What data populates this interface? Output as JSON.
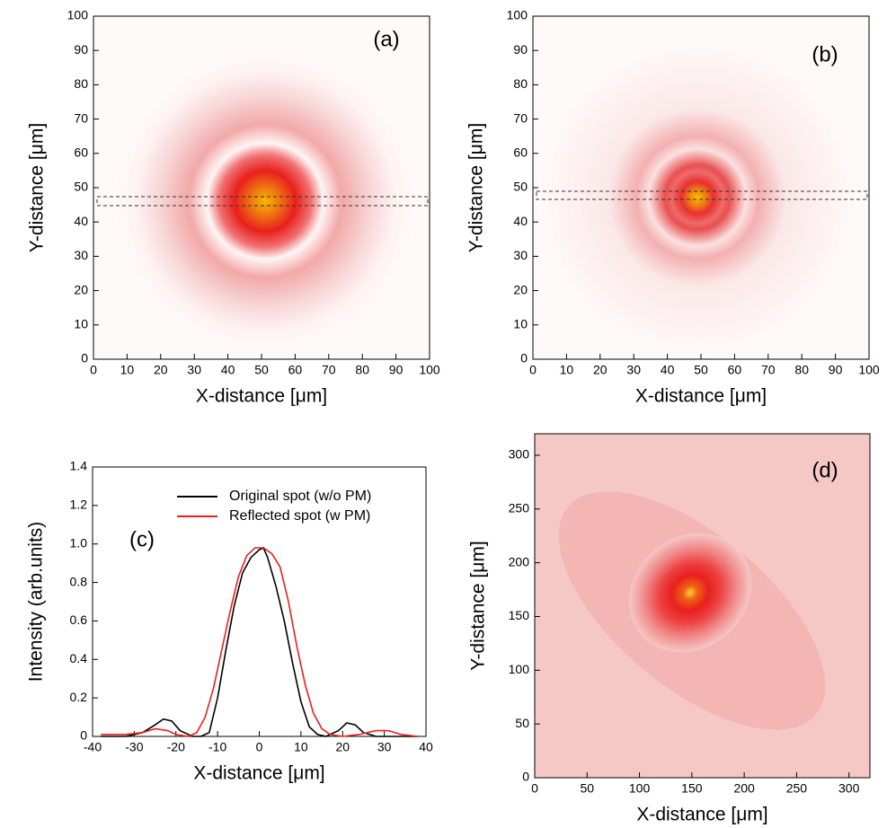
{
  "chart_data": [
    {
      "type": "heatmap",
      "annotation": "(a)",
      "x_label": "X-distance [μm]",
      "y_label": "Y-distance [μm]",
      "xlim": [
        0,
        100
      ],
      "ylim": [
        0,
        100
      ],
      "xticks": [
        0,
        10,
        20,
        30,
        40,
        50,
        60,
        70,
        80,
        90,
        100
      ],
      "yticks": [
        0,
        10,
        20,
        30,
        40,
        50,
        60,
        70,
        80,
        90,
        100
      ]
    },
    {
      "type": "heatmap",
      "annotation": "(b)",
      "x_label": "X-distance [μm]",
      "y_label": "Y-distance [μm]",
      "xlim": [
        0,
        100
      ],
      "ylim": [
        0,
        100
      ],
      "xticks": [
        0,
        10,
        20,
        30,
        40,
        50,
        60,
        70,
        80,
        90,
        100
      ],
      "yticks": [
        0,
        10,
        20,
        30,
        40,
        50,
        60,
        70,
        80,
        90,
        100
      ]
    },
    {
      "type": "line",
      "annotation": "(c)",
      "x_label": "X-distance [μm]",
      "y_label": "Intensity (arb.units)",
      "xlim": [
        -40,
        40
      ],
      "ylim": [
        0,
        1.4
      ],
      "xticks": [
        -40,
        -30,
        -20,
        -10,
        0,
        10,
        20,
        30,
        40
      ],
      "yticks": [
        0,
        0.2,
        0.4,
        0.6,
        0.8,
        {
          "value": 1,
          "label": "1.0"
        },
        1.2,
        1.4
      ],
      "series": [
        {
          "name": "Original spot (w/o PM)",
          "color": "#000000",
          "x": [
            -38,
            -32,
            -28,
            -25,
            -23,
            -21,
            -19,
            -16,
            -14,
            -12,
            -10,
            -8,
            -6,
            -4,
            -2,
            0,
            1,
            2,
            4,
            6,
            8,
            10,
            12,
            14,
            16,
            19,
            21,
            23,
            25,
            28,
            32,
            38
          ],
          "values": [
            0,
            0,
            0.02,
            0.06,
            0.09,
            0.08,
            0.03,
            0,
            0,
            0.02,
            0.2,
            0.45,
            0.68,
            0.85,
            0.93,
            0.97,
            0.98,
            0.93,
            0.78,
            0.6,
            0.38,
            0.18,
            0.05,
            0.01,
            0,
            0.03,
            0.07,
            0.06,
            0.02,
            0,
            0,
            0
          ]
        },
        {
          "name": "Reflected spot (w PM)",
          "color": "#e8201c",
          "x": [
            -38,
            -32,
            -28,
            -25,
            -22,
            -20,
            -17,
            -15,
            -13,
            -11,
            -9,
            -7,
            -5,
            -3,
            -1,
            0,
            1,
            3,
            5,
            7,
            9,
            11,
            13,
            15,
            17,
            20,
            24,
            28,
            31,
            34,
            38
          ],
          "values": [
            0.01,
            0.01,
            0.02,
            0.04,
            0.03,
            0.01,
            0,
            0.02,
            0.1,
            0.25,
            0.45,
            0.65,
            0.83,
            0.94,
            0.98,
            0.98,
            0.98,
            0.95,
            0.88,
            0.7,
            0.47,
            0.27,
            0.12,
            0.04,
            0.01,
            0,
            0.01,
            0.03,
            0.03,
            0.01,
            0
          ]
        }
      ]
    },
    {
      "type": "heatmap",
      "annotation": "(d)",
      "x_label": "X-distance [μm]",
      "y_label": "Y-distance [μm]",
      "xlim": [
        0,
        320
      ],
      "ylim": [
        0,
        320
      ],
      "xticks": [
        0,
        50,
        100,
        150,
        200,
        250,
        300
      ],
      "yticks": [
        0,
        50,
        100,
        150,
        200,
        250,
        300
      ]
    }
  ]
}
